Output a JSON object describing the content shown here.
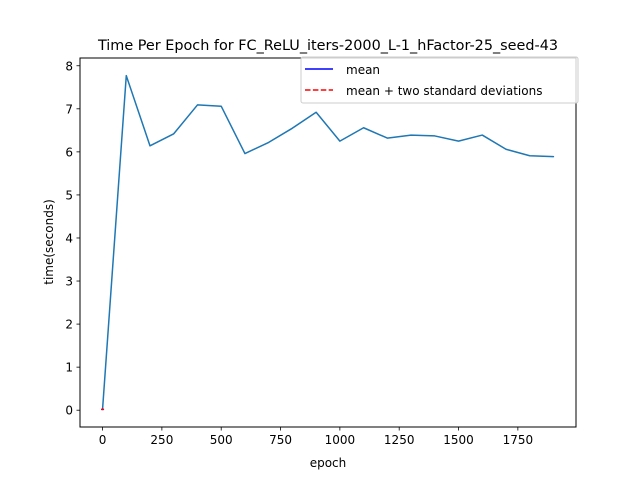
{
  "chart_data": {
    "type": "line",
    "title": "Time Per Epoch for FC_ReLU_iters-2000_L-1_hFactor-25_seed-43",
    "xlabel": "epoch",
    "ylabel": "time(seconds)",
    "xlim": [
      -95,
      1995
    ],
    "ylim": [
      -0.39,
      8.18
    ],
    "xticks": [
      0,
      250,
      500,
      750,
      1000,
      1250,
      1500,
      1750
    ],
    "yticks": [
      0,
      1,
      2,
      3,
      4,
      5,
      6,
      7,
      8
    ],
    "legend": {
      "placement": "top-right",
      "entries": [
        {
          "label": "mean",
          "color": "#0000ff",
          "style": "solid"
        },
        {
          "label": "mean + two standard deviations",
          "color": "#ff0000",
          "style": "dashed"
        }
      ]
    },
    "series": [
      {
        "color": "#1f77b4",
        "style": "solid",
        "x": [
          0,
          100,
          200,
          300,
          400,
          500,
          600,
          700,
          800,
          900,
          1000,
          1100,
          1200,
          1300,
          1400,
          1500,
          1600,
          1700,
          1800,
          1900
        ],
        "y": [
          0.02,
          7.77,
          6.14,
          6.42,
          7.09,
          7.06,
          5.96,
          6.22,
          6.55,
          6.92,
          6.25,
          6.56,
          6.32,
          6.39,
          6.37,
          6.25,
          6.39,
          6.06,
          5.91,
          5.89
        ]
      },
      {
        "color": "#0000ff",
        "style": "solid",
        "x": [
          0
        ],
        "y": [
          0.02
        ]
      },
      {
        "color": "#ff0000",
        "style": "dashed",
        "x": [
          0
        ],
        "y": [
          0.02
        ]
      }
    ]
  }
}
